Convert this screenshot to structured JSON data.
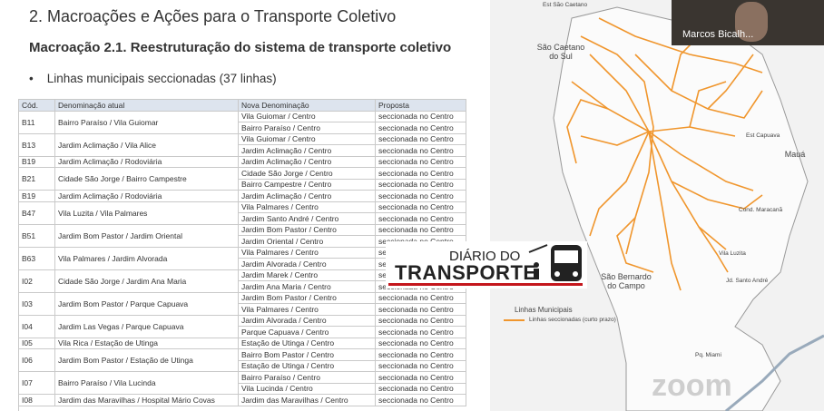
{
  "slide": {
    "title": "2. Macroações e Ações para o Transporte Coletivo",
    "subtitle": "Macroação 2.1. Reestruturação do sistema de transporte coletivo",
    "bullet": "Linhas municipais seccionadas (37 linhas)"
  },
  "table": {
    "header": [
      "Cód.",
      "Denominação atual",
      "Nova Denominação",
      "Proposta"
    ],
    "rows": [
      {
        "code": "B11",
        "name": "Bairro Paraíso / Vila Guiomar",
        "new": [
          "Vila Guiomar / Centro",
          "Bairro Paraíso / Centro"
        ],
        "proposal": [
          "seccionada no Centro",
          "seccionada no Centro"
        ]
      },
      {
        "code": "B13",
        "name": "Jardim Aclimação / Vila Alice",
        "new": [
          "Vila Guiomar / Centro",
          "Jardim Aclimação / Centro"
        ],
        "proposal": [
          "seccionada no Centro",
          "seccionada no Centro"
        ]
      },
      {
        "code": "B19",
        "name": "Jardim Aclimação / Rodoviária",
        "new": [
          "Jardim Aclimação / Centro"
        ],
        "proposal": [
          "seccionada no Centro"
        ]
      },
      {
        "code": "B21",
        "name": "Cidade São Jorge / Bairro Campestre",
        "new": [
          "Cidade São Jorge / Centro",
          "Bairro Campestre / Centro"
        ],
        "proposal": [
          "seccionada no Centro",
          "seccionada no Centro"
        ]
      },
      {
        "code": "B19",
        "name": "Jardim Aclimação / Rodoviária",
        "new": [
          "Jardim Aclimação / Centro"
        ],
        "proposal": [
          "seccionada no Centro"
        ]
      },
      {
        "code": "B47",
        "name": "Vila Luzita / Vila Palmares",
        "new": [
          "Vila Palmares / Centro",
          "Jardim Santo André / Centro"
        ],
        "proposal": [
          "seccionada no Centro",
          "seccionada no Centro"
        ]
      },
      {
        "code": "B51",
        "name": "Jardim Bom Pastor / Jardim Oriental",
        "new": [
          "Jardim Bom Pastor / Centro",
          "Jardim Oriental / Centro"
        ],
        "proposal": [
          "seccionada no Centro",
          "seccionada no Centro"
        ]
      },
      {
        "code": "B63",
        "name": "Vila Palmares / Jardim Alvorada",
        "new": [
          "Vila Palmares / Centro",
          "Jardim Alvorada / Centro"
        ],
        "proposal": [
          "seccionada no Centro",
          "seccionada no Centro"
        ]
      },
      {
        "code": "I02",
        "name": "Cidade São Jorge / Jardim Ana Maria",
        "new": [
          "Jardim Marek / Centro",
          "Jardim Ana Maria / Centro"
        ],
        "proposal": [
          "seccionada no Centro",
          "seccionada no Centro"
        ]
      },
      {
        "code": "I03",
        "name": "Jardim Bom Pastor / Parque Capuava",
        "new": [
          "Jardim Bom Pastor / Centro",
          "Vila Palmares / Centro"
        ],
        "proposal": [
          "seccionada no Centro",
          "seccionada no Centro"
        ]
      },
      {
        "code": "I04",
        "name": "Jardim Las Vegas / Parque Capuava",
        "new": [
          "Jardim Alvorada / Centro",
          "Parque Capuava / Centro"
        ],
        "proposal": [
          "seccionada no Centro",
          "seccionada no Centro"
        ]
      },
      {
        "code": "I05",
        "name": "Vila Rica / Estação de Utinga",
        "new": [
          "Estação de Utinga / Centro"
        ],
        "proposal": [
          "seccionada no Centro"
        ]
      },
      {
        "code": "I06",
        "name": "Jardim Bom Pastor / Estação de Utinga",
        "new": [
          "Bairro Bom Pastor / Centro",
          "Estação de Utinga / Centro"
        ],
        "proposal": [
          "seccionada no Centro",
          "seccionada no Centro"
        ]
      },
      {
        "code": "I07",
        "name": "Bairro Paraíso / Vila Lucinda",
        "new": [
          "Bairro Paraíso / Centro",
          "Vila Lucinda / Centro"
        ],
        "proposal": [
          "seccionada no Centro",
          "seccionada no Centro"
        ]
      },
      {
        "code": "I08",
        "name": "Jardim das Maravilhas / Hospital Mário Covas",
        "new": [
          "Jardim das Maravilhas / Centro"
        ],
        "proposal": [
          "seccionada no Centro"
        ]
      }
    ]
  },
  "map": {
    "labels": [
      "Est São Caetano",
      "São Caetano do Sul",
      "Est Capuava",
      "Mauá",
      "Cond. Maracanã",
      "Vila Luzita",
      "Jd. Santo André",
      "São Bernardo do Campo",
      "Pq. Miami"
    ],
    "legend": {
      "title": "Linhas Municipais",
      "item": "Linhas seccionadas (curto prazo)"
    }
  },
  "logo": {
    "line1": "DIÁRIO DO",
    "line2": "TRANSPORTE"
  },
  "video": {
    "name": "Marcos Bicalh..."
  },
  "watermark": "zoom"
}
